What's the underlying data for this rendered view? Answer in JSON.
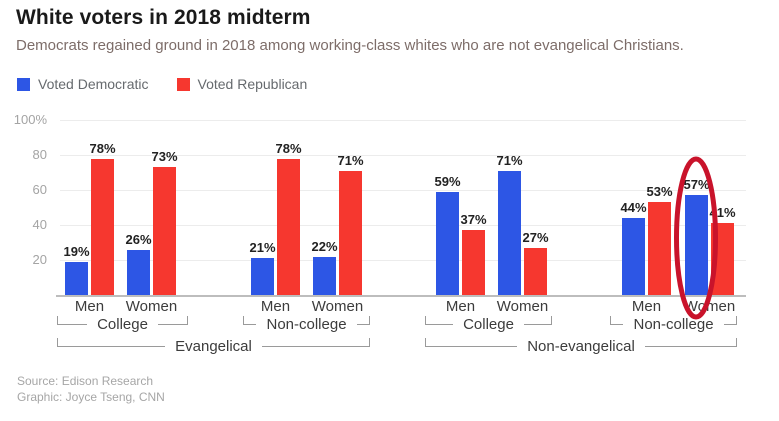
{
  "header": {
    "title": "White voters in 2018 midterm",
    "subtitle": "Democrats regained ground in 2018 among working-class whites who are not evangelical Christians."
  },
  "legend": {
    "items": [
      {
        "label": "Voted Democratic",
        "color": "#2d56e5"
      },
      {
        "label": "Voted Republican",
        "color": "#f6372f"
      }
    ]
  },
  "chart_data": {
    "type": "bar",
    "title": "White voters in 2018 midterm",
    "unit": "%",
    "ylim": [
      0,
      100
    ],
    "yticks": [
      20,
      40,
      60,
      80,
      100
    ],
    "ytick_labels": [
      "20",
      "40",
      "60",
      "80",
      "100%"
    ],
    "grid": true,
    "legend_position": "top-left",
    "series_names": [
      "Voted Democratic",
      "Voted Republican"
    ],
    "groups": [
      {
        "religion": "Evangelical",
        "education": "College",
        "pairs": [
          {
            "category": "Men",
            "democratic": 19,
            "republican": 78
          },
          {
            "category": "Women",
            "democratic": 26,
            "republican": 73
          }
        ]
      },
      {
        "religion": "Evangelical",
        "education": "Non-college",
        "pairs": [
          {
            "category": "Men",
            "democratic": 21,
            "republican": 78
          },
          {
            "category": "Women",
            "democratic": 22,
            "republican": 71
          }
        ]
      },
      {
        "religion": "Non-evangelical",
        "education": "College",
        "pairs": [
          {
            "category": "Men",
            "democratic": 59,
            "republican": 37
          },
          {
            "category": "Women",
            "democratic": 71,
            "republican": 27
          }
        ]
      },
      {
        "religion": "Non-evangelical",
        "education": "Non-college",
        "pairs": [
          {
            "category": "Men",
            "democratic": 44,
            "republican": 53
          },
          {
            "category": "Women",
            "democratic": 57,
            "republican": 41
          }
        ]
      }
    ],
    "annotation": {
      "type": "ellipse",
      "highlights": "Non-evangelical Non-college Women Voted Democratic bar (57%)",
      "color": "#c9132b"
    }
  },
  "colors": {
    "democratic": "#2d56e5",
    "republican": "#f6372f",
    "annotation": "#c9132b"
  },
  "footer": {
    "source": "Source: Edison Research",
    "credit": "Graphic: Joyce Tseng, CNN"
  }
}
